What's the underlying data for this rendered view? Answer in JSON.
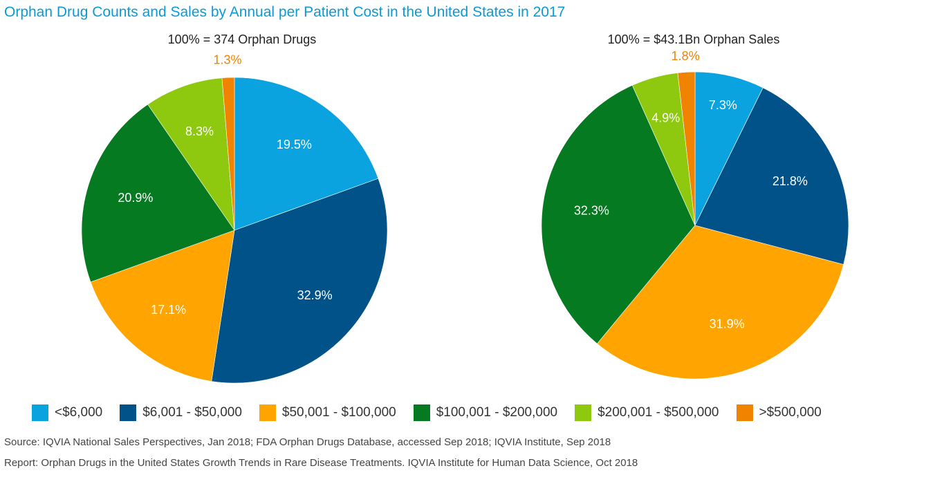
{
  "page": {
    "title": "Orphan Drug Counts and Sales by Annual per Patient Cost in the United States in 2017",
    "source_note": "Source: IQVIA National Sales Perspectives, Jan 2018; FDA Orphan Drugs Database, accessed Sep 2018; IQVIA Institute, Sep 2018",
    "report_note": "Report: Orphan Drugs in the United States Growth Trends in Rare Disease Treatments. IQVIA Institute for Human Data Science, Oct 2018"
  },
  "chart_data": [
    {
      "type": "pie",
      "title": "100% =  374 Orphan Drugs",
      "categories": [
        "<$6,000",
        "$6,001 - $50,000",
        "$50,001 - $100,000",
        "$100,001 - $200,000",
        "$200,001 - $500,000",
        ">$500,000"
      ],
      "values": [
        19.5,
        32.9,
        17.1,
        20.9,
        8.3,
        1.3
      ],
      "labels": [
        "19.5%",
        "32.9%",
        "17.1%",
        "20.9%",
        "8.3%",
        "1.3%"
      ],
      "colors": [
        "#0aa3e0",
        "#005288",
        "#ffa400",
        "#067a20",
        "#8ec90f",
        "#f08300"
      ],
      "start_angle_deg": 0,
      "direction": "clockwise"
    },
    {
      "type": "pie",
      "title": "100% =  $43.1Bn Orphan Sales",
      "categories": [
        "<$6,000",
        "$6,001 - $50,000",
        "$50,001 - $100,000",
        "$100,001 - $200,000",
        "$200,001 - $500,000",
        ">$500,000"
      ],
      "values": [
        7.3,
        21.8,
        31.9,
        32.3,
        4.9,
        1.8
      ],
      "labels": [
        "7.3%",
        "21.8%",
        "31.9%",
        "32.3%",
        "4.9%",
        "1.8%"
      ],
      "colors": [
        "#0aa3e0",
        "#005288",
        "#ffa400",
        "#067a20",
        "#8ec90f",
        "#f08300"
      ],
      "start_angle_deg": 0,
      "direction": "clockwise"
    }
  ],
  "legend": {
    "placement": "bottom",
    "items": [
      {
        "label": "<$6,000",
        "color": "#0aa3e0"
      },
      {
        "label": "$6,001 - $50,000",
        "color": "#005288"
      },
      {
        "label": "$50,001 - $100,000",
        "color": "#ffa400"
      },
      {
        "label": "$100,001 - $200,000",
        "color": "#067a20"
      },
      {
        "label": "$200,001 - $500,000",
        "color": "#8ec90f"
      },
      {
        "label": ">$500,000",
        "color": "#f08300"
      }
    ]
  }
}
